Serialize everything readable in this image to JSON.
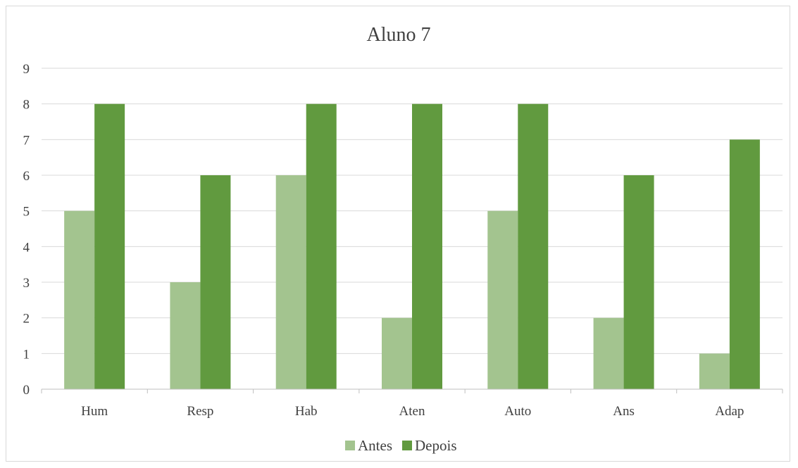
{
  "chart_data": {
    "type": "bar",
    "title": "Aluno 7",
    "xlabel": "",
    "ylabel": "",
    "categories": [
      "Hum",
      "Resp",
      "Hab",
      "Aten",
      "Auto",
      "Ans",
      "Adap"
    ],
    "series": [
      {
        "name": "Antes",
        "values": [
          5,
          3,
          6,
          2,
          5,
          2,
          1
        ],
        "color": "#a3c48f"
      },
      {
        "name": "Depois",
        "values": [
          8,
          6,
          8,
          8,
          8,
          6,
          7
        ],
        "color": "#619a3f"
      }
    ],
    "ylim": [
      0,
      9
    ],
    "yticks": [
      0,
      1,
      2,
      3,
      4,
      5,
      6,
      7,
      8,
      9
    ],
    "grid": true,
    "legend_position": "bottom"
  }
}
